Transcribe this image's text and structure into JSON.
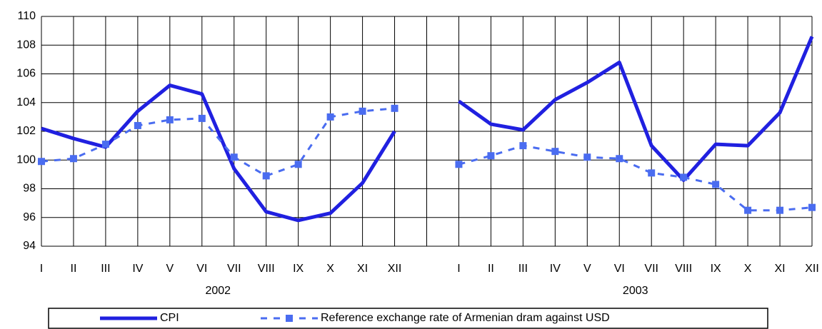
{
  "chart_data": {
    "type": "line",
    "categories": [
      "I",
      "II",
      "III",
      "IV",
      "V",
      "VI",
      "VII",
      "VIII",
      "IX",
      "X",
      "XI",
      "XII",
      null,
      "I",
      "II",
      "III",
      "IV",
      "V",
      "VI",
      "VII",
      "VIII",
      "IX",
      "X",
      "XI",
      "XII"
    ],
    "groups": [
      "2002",
      "2003"
    ],
    "series": [
      {
        "name": "CPI",
        "color": "#2020e0",
        "values": [
          102.2,
          101.5,
          100.9,
          103.4,
          105.2,
          104.6,
          99.4,
          96.4,
          95.8,
          96.3,
          98.4,
          102.0,
          null,
          104.1,
          102.5,
          102.1,
          104.2,
          105.4,
          106.8,
          101.0,
          98.6,
          101.1,
          101.0,
          103.3,
          108.6
        ]
      },
      {
        "name": "Reference exchange rate of Armenian dram against USD",
        "color": "#4a6cf0",
        "values": [
          99.9,
          100.1,
          101.1,
          102.4,
          102.8,
          102.9,
          100.2,
          98.9,
          99.7,
          103.0,
          103.4,
          103.6,
          null,
          99.7,
          100.3,
          101.0,
          100.6,
          100.2,
          100.1,
          99.1,
          98.8,
          98.3,
          96.5,
          96.5,
          96.7
        ]
      }
    ],
    "ylim": [
      94,
      110
    ],
    "yticks": [
      94,
      96,
      98,
      100,
      102,
      104,
      106,
      108,
      110
    ],
    "grid": true,
    "legend": "bottom"
  }
}
